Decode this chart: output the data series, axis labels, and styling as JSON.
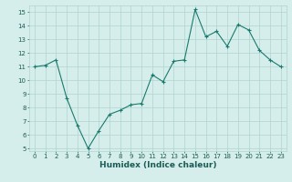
{
  "title": "",
  "xlabel": "Humidex (Indice chaleur)",
  "ylabel": "",
  "xlim": [
    -0.5,
    23.5
  ],
  "ylim": [
    4.8,
    15.5
  ],
  "yticks": [
    5,
    6,
    7,
    8,
    9,
    10,
    11,
    12,
    13,
    14,
    15
  ],
  "xticks": [
    0,
    1,
    2,
    3,
    4,
    5,
    6,
    7,
    8,
    9,
    10,
    11,
    12,
    13,
    14,
    15,
    16,
    17,
    18,
    19,
    20,
    21,
    22,
    23
  ],
  "x": [
    0,
    1,
    2,
    3,
    4,
    5,
    6,
    7,
    8,
    9,
    10,
    11,
    12,
    13,
    14,
    15,
    16,
    17,
    18,
    19,
    20,
    21,
    22,
    23
  ],
  "y": [
    11.0,
    11.1,
    11.5,
    8.7,
    6.7,
    5.0,
    6.3,
    7.5,
    7.8,
    8.2,
    8.3,
    10.4,
    9.9,
    11.4,
    11.5,
    15.2,
    13.2,
    13.6,
    12.5,
    14.1,
    13.7,
    12.2,
    11.5,
    11.0
  ],
  "line_color": "#1a7a6e",
  "marker_color": "#1a7a6e",
  "bg_color": "#d6eeeb",
  "grid_color": "#b0d4d0",
  "tick_label_color": "#1a5c54",
  "xlabel_color": "#1a5c54",
  "xlabel_fontsize": 6.5,
  "tick_fontsize": 5.0
}
